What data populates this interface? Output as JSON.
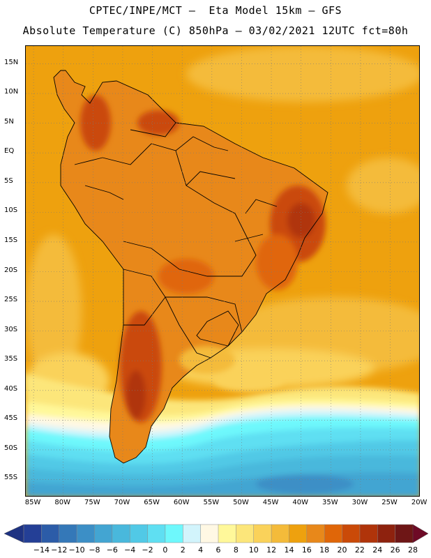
{
  "header": {
    "line1": "CPTEC/INPE/MCT –  Eta Model 15km – GFS",
    "line2": "Absolute Temperature (C) 850hPa – 03/02/2021 12UTC fct=80h"
  },
  "map": {
    "lat_labels": [
      "15N",
      "10N",
      "5N",
      "EQ",
      "5S",
      "10S",
      "15S",
      "20S",
      "25S",
      "30S",
      "35S",
      "40S",
      "45S",
      "50S",
      "55S"
    ],
    "lon_labels": [
      "85W",
      "80W",
      "75W",
      "70W",
      "65W",
      "60W",
      "55W",
      "50W",
      "45W",
      "40W",
      "35W",
      "30W",
      "25W",
      "20W"
    ],
    "lat_range": [
      -58,
      18
    ],
    "lon_range": [
      -86.3,
      -19.9
    ],
    "grid": true
  },
  "colorbar": {
    "labels": [
      "-14",
      "-12",
      "-10",
      "-8",
      "-6",
      "-4",
      "-2",
      "0",
      "2",
      "4",
      "6",
      "8",
      "10",
      "12",
      "14",
      "16",
      "18",
      "20",
      "22",
      "24",
      "26",
      "28"
    ],
    "colors": [
      "#243f96",
      "#2c5ca8",
      "#3478b8",
      "#3c8fc6",
      "#43a5d2",
      "#49b8dc",
      "#51c9e6",
      "#5fdff2",
      "#6ef8fc",
      "#d2f4fc",
      "#fff8e4",
      "#fff89a",
      "#fce67a",
      "#fad25a",
      "#f4bb3a",
      "#eea10e",
      "#e8881a",
      "#e06608",
      "#ca4a08",
      "#b0340a",
      "#8e220e",
      "#6e1616"
    ],
    "low_color": "#1e3282",
    "high_color": "#6e0a26"
  }
}
